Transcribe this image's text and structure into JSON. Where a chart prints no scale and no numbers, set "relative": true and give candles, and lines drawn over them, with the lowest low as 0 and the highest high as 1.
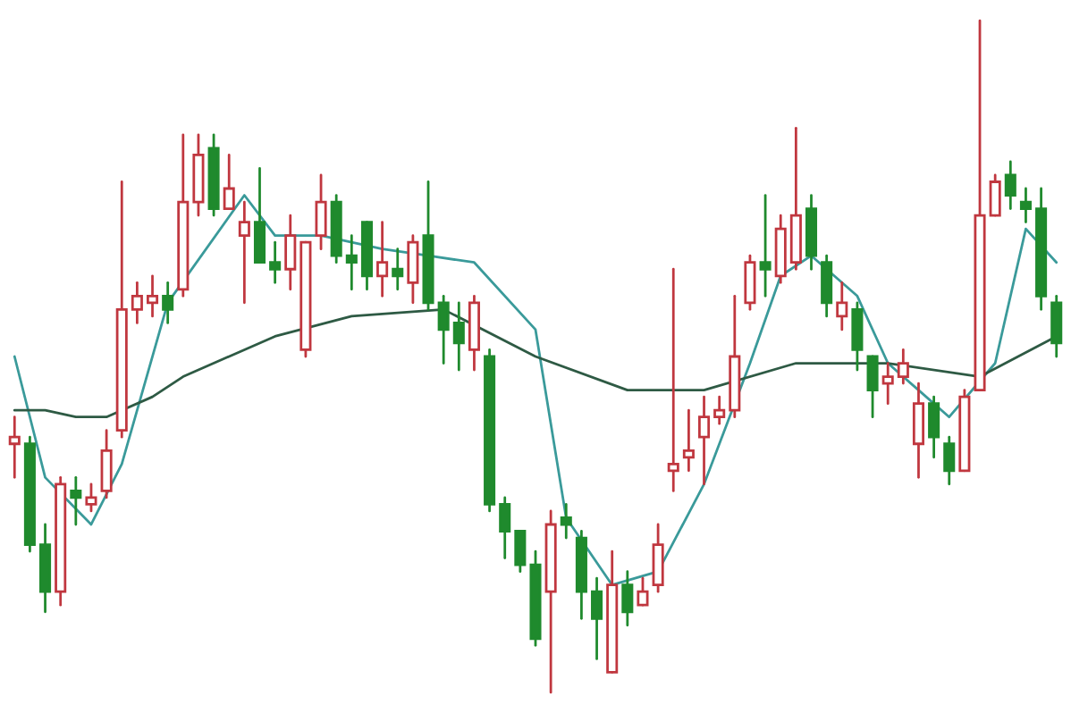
{
  "chart_data": {
    "type": "candlestick",
    "relative": true,
    "categories": [
      null,
      null,
      null,
      null,
      null,
      null,
      null,
      null,
      null,
      null,
      null,
      null,
      null,
      null,
      null,
      null,
      null,
      null,
      null,
      null,
      null,
      null,
      null,
      null,
      null,
      null,
      null,
      null,
      null,
      null,
      null,
      null,
      null,
      null,
      null,
      null,
      null,
      null,
      null,
      null,
      null,
      null,
      null,
      null,
      null,
      null,
      null,
      null,
      null,
      null,
      null,
      null,
      null,
      null,
      null,
      null,
      null,
      null,
      null,
      null,
      null,
      null,
      null,
      null,
      null,
      null,
      null,
      null,
      null
    ],
    "ohlc": [
      [
        0.37,
        0.41,
        0.32,
        0.38
      ],
      [
        0.37,
        0.38,
        0.21,
        0.22
      ],
      [
        0.22,
        0.25,
        0.12,
        0.15
      ],
      [
        0.15,
        0.32,
        0.13,
        0.31
      ],
      [
        0.3,
        0.32,
        0.25,
        0.29
      ],
      [
        0.28,
        0.31,
        0.27,
        0.29
      ],
      [
        0.3,
        0.39,
        0.29,
        0.36
      ],
      [
        0.39,
        0.76,
        0.38,
        0.57
      ],
      [
        0.57,
        0.61,
        0.55,
        0.59
      ],
      [
        0.58,
        0.62,
        0.56,
        0.59
      ],
      [
        0.59,
        0.61,
        0.55,
        0.57
      ],
      [
        0.6,
        0.83,
        0.59,
        0.73
      ],
      [
        0.73,
        0.83,
        0.71,
        0.8
      ],
      [
        0.81,
        0.83,
        0.71,
        0.72
      ],
      [
        0.72,
        0.8,
        0.72,
        0.75
      ],
      [
        0.68,
        0.73,
        0.58,
        0.7
      ],
      [
        0.7,
        0.78,
        0.64,
        0.64
      ],
      [
        0.64,
        0.67,
        0.61,
        0.63
      ],
      [
        0.63,
        0.71,
        0.6,
        0.68
      ],
      [
        0.51,
        0.67,
        0.5,
        0.67
      ],
      [
        0.68,
        0.77,
        0.66,
        0.73
      ],
      [
        0.73,
        0.74,
        0.64,
        0.65
      ],
      [
        0.65,
        0.68,
        0.6,
        0.64
      ],
      [
        0.7,
        0.7,
        0.6,
        0.62
      ],
      [
        0.62,
        0.7,
        0.59,
        0.64
      ],
      [
        0.63,
        0.66,
        0.6,
        0.62
      ],
      [
        0.61,
        0.68,
        0.58,
        0.67
      ],
      [
        0.68,
        0.76,
        0.57,
        0.58
      ],
      [
        0.58,
        0.59,
        0.49,
        0.54
      ],
      [
        0.55,
        0.58,
        0.48,
        0.52
      ],
      [
        0.51,
        0.59,
        0.48,
        0.58
      ],
      [
        0.5,
        0.51,
        0.27,
        0.28
      ],
      [
        0.28,
        0.29,
        0.2,
        0.24
      ],
      [
        0.24,
        0.24,
        0.18,
        0.19
      ],
      [
        0.19,
        0.21,
        0.07,
        0.08
      ],
      [
        0.15,
        0.27,
        0.0,
        0.25
      ],
      [
        0.26,
        0.28,
        0.23,
        0.25
      ],
      [
        0.23,
        0.24,
        0.11,
        0.15
      ],
      [
        0.15,
        0.17,
        0.05,
        0.11
      ],
      [
        0.03,
        0.21,
        0.03,
        0.16
      ],
      [
        0.16,
        0.18,
        0.1,
        0.12
      ],
      [
        0.13,
        0.17,
        0.13,
        0.15
      ],
      [
        0.16,
        0.25,
        0.15,
        0.22
      ],
      [
        0.33,
        0.63,
        0.3,
        0.34
      ],
      [
        0.35,
        0.42,
        0.33,
        0.36
      ],
      [
        0.38,
        0.44,
        0.31,
        0.41
      ],
      [
        0.41,
        0.44,
        0.4,
        0.42
      ],
      [
        0.42,
        0.59,
        0.41,
        0.5
      ],
      [
        0.58,
        0.65,
        0.57,
        0.64
      ],
      [
        0.64,
        0.74,
        0.59,
        0.63
      ],
      [
        0.62,
        0.71,
        0.61,
        0.69
      ],
      [
        0.64,
        0.84,
        0.63,
        0.71
      ],
      [
        0.72,
        0.74,
        0.63,
        0.65
      ],
      [
        0.64,
        0.65,
        0.56,
        0.58
      ],
      [
        0.56,
        0.61,
        0.54,
        0.58
      ],
      [
        0.57,
        0.58,
        0.48,
        0.51
      ],
      [
        0.5,
        0.5,
        0.41,
        0.45
      ],
      [
        0.46,
        0.49,
        0.43,
        0.47
      ],
      [
        0.47,
        0.51,
        0.46,
        0.49
      ],
      [
        0.37,
        0.46,
        0.32,
        0.43
      ],
      [
        0.43,
        0.44,
        0.35,
        0.38
      ],
      [
        0.37,
        0.38,
        0.31,
        0.33
      ],
      [
        0.33,
        0.45,
        0.33,
        0.44
      ],
      [
        0.45,
        1.0,
        0.45,
        0.71
      ],
      [
        0.71,
        0.77,
        0.71,
        0.76
      ],
      [
        0.77,
        0.79,
        0.72,
        0.74
      ],
      [
        0.73,
        0.75,
        0.7,
        0.72
      ],
      [
        0.72,
        0.75,
        0.57,
        0.59
      ],
      [
        0.58,
        0.59,
        0.5,
        0.52
      ]
    ],
    "colors": [
      "#c0373f",
      "#1f8a2d",
      "#1f8a2d",
      "#c0373f",
      "#1f8a2d",
      "#c0373f",
      "#c0373f",
      "#c0373f",
      "#c0373f",
      "#c0373f",
      "#1f8a2d",
      "#c0373f",
      "#c0373f",
      "#1f8a2d",
      "#c0373f",
      "#c0373f",
      "#1f8a2d",
      "#1f8a2d",
      "#c0373f",
      "#c0373f",
      "#c0373f",
      "#1f8a2d",
      "#1f8a2d",
      "#1f8a2d",
      "#c0373f",
      "#1f8a2d",
      "#c0373f",
      "#1f8a2d",
      "#1f8a2d",
      "#1f8a2d",
      "#c0373f",
      "#1f8a2d",
      "#1f8a2d",
      "#1f8a2d",
      "#1f8a2d",
      "#c0373f",
      "#1f8a2d",
      "#1f8a2d",
      "#1f8a2d",
      "#c0373f",
      "#1f8a2d",
      "#c0373f",
      "#c0373f",
      "#c0373f",
      "#c0373f",
      "#c0373f",
      "#c0373f",
      "#c0373f",
      "#c0373f",
      "#1f8a2d",
      "#c0373f",
      "#c0373f",
      "#1f8a2d",
      "#1f8a2d",
      "#c0373f",
      "#1f8a2d",
      "#1f8a2d",
      "#c0373f",
      "#c0373f",
      "#c0373f",
      "#1f8a2d",
      "#1f8a2d",
      "#c0373f",
      "#c0373f",
      "#c0373f",
      "#1f8a2d",
      "#1f8a2d",
      "#1f8a2d",
      "#1f8a2d"
    ],
    "series": [
      {
        "type": "line",
        "color": "#3a9a9a",
        "values": [
          0.5,
          null,
          0.32,
          null,
          null,
          0.25,
          null,
          0.34,
          null,
          null,
          0.58,
          null,
          null,
          null,
          null,
          0.74,
          null,
          0.68,
          null,
          null,
          0.68,
          null,
          null,
          null,
          0.66,
          null,
          null,
          0.65,
          null,
          null,
          0.64,
          null,
          null,
          null,
          0.54,
          null,
          0.26,
          null,
          null,
          0.16,
          null,
          null,
          0.18,
          null,
          null,
          0.31,
          null,
          null,
          0.49,
          null,
          0.62,
          null,
          0.65,
          null,
          null,
          0.59,
          null,
          0.49,
          null,
          0.45,
          null,
          0.41,
          null,
          null,
          0.49,
          null,
          0.69,
          null,
          0.64
        ]
      },
      {
        "type": "line",
        "color": "#2e5a44",
        "values": [
          0.42,
          null,
          0.42,
          null,
          0.41,
          null,
          0.41,
          null,
          null,
          0.44,
          null,
          0.47,
          null,
          null,
          null,
          null,
          null,
          0.53,
          null,
          null,
          null,
          null,
          0.56,
          null,
          null,
          null,
          null,
          null,
          0.57,
          null,
          null,
          null,
          null,
          null,
          0.5,
          null,
          null,
          null,
          null,
          null,
          0.45,
          null,
          null,
          null,
          null,
          0.45,
          null,
          null,
          null,
          null,
          null,
          0.49,
          null,
          null,
          null,
          null,
          null,
          0.49,
          null,
          null,
          null,
          null,
          null,
          0.47,
          null,
          null,
          null,
          null,
          0.53
        ]
      }
    ]
  }
}
